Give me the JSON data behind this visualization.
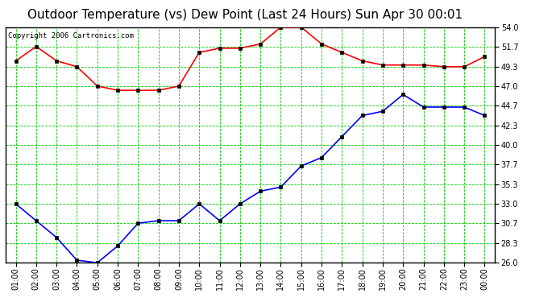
{
  "title": "Outdoor Temperature (vs) Dew Point (Last 24 Hours) Sun Apr 30 00:01",
  "copyright": "Copyright 2006 Cartronics.com",
  "x_labels": [
    "01:00",
    "02:00",
    "03:00",
    "04:00",
    "05:00",
    "06:00",
    "07:00",
    "08:00",
    "09:00",
    "10:00",
    "11:00",
    "12:00",
    "13:00",
    "14:00",
    "15:00",
    "16:00",
    "17:00",
    "18:00",
    "19:00",
    "20:00",
    "21:00",
    "22:00",
    "23:00",
    "00:00"
  ],
  "temp": [
    50.0,
    51.7,
    50.0,
    49.3,
    47.0,
    46.5,
    46.5,
    46.5,
    47.0,
    51.0,
    51.5,
    51.5,
    52.0,
    54.0,
    54.0,
    52.0,
    51.0,
    50.0,
    49.5,
    49.5,
    49.5,
    49.3,
    49.3,
    50.5
  ],
  "dew": [
    33.0,
    31.0,
    29.0,
    26.3,
    26.0,
    28.0,
    30.7,
    31.0,
    31.0,
    33.0,
    31.0,
    33.0,
    34.5,
    35.0,
    37.5,
    38.5,
    41.0,
    43.5,
    44.0,
    46.0,
    44.5,
    44.5,
    44.5,
    43.5
  ],
  "temp_color": "#ff0000",
  "dew_color": "#0000ff",
  "bg_color": "#ffffff",
  "plot_bg": "#ffffff",
  "grid_color": "#00cc00",
  "border_color": "#000000",
  "y_ticks": [
    26.0,
    28.3,
    30.7,
    33.0,
    35.3,
    37.7,
    40.0,
    42.3,
    44.7,
    47.0,
    49.3,
    51.7,
    54.0
  ],
  "ylim": [
    26.0,
    54.0
  ],
  "title_fontsize": 11,
  "copyright_fontsize": 6.5,
  "tick_fontsize": 7,
  "marker": "s",
  "marker_size": 2.5,
  "line_width": 1.2
}
